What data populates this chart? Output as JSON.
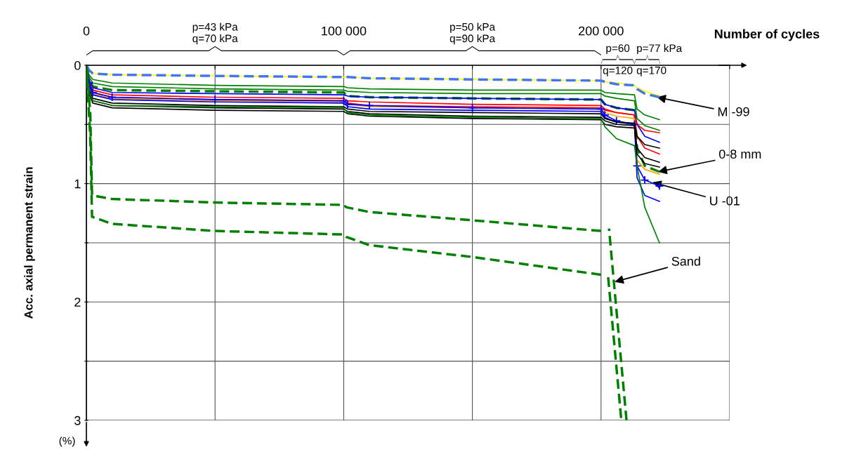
{
  "chart_data": {
    "type": "line",
    "xlabel": "Number of cycles",
    "ylabel": "Acc. axial permanent strain",
    "x": [
      0,
      1000,
      2500,
      10000,
      50000,
      100000,
      101500,
      110000,
      150000,
      200000,
      201500,
      206000,
      213000,
      214000,
      217000,
      222700
    ],
    "xlim": [
      0,
      250000
    ],
    "ylim": [
      3,
      0
    ],
    "xticks": [
      0,
      {
        "value": 50000,
        "label": null
      },
      {
        "value": 100000,
        "label": "100 000"
      },
      {
        "value": 150000,
        "label": null
      },
      {
        "value": 200000,
        "label": "200 000"
      },
      {
        "value": 250000,
        "label": null
      }
    ],
    "yticks": [
      0,
      {
        "value": 0.5,
        "label": null
      },
      1,
      {
        "value": 1.5,
        "label": null
      },
      2,
      {
        "value": 2.5,
        "label": null
      },
      3
    ],
    "grid": true,
    "series": [
      {
        "color": "#ffff00",
        "values": [
          0,
          0.05,
          0.07,
          0.08,
          0.09,
          0.1,
          0.1,
          0.11,
          0.12,
          0.13,
          0.14,
          0.15,
          0.17,
          0.19,
          0.22,
          0.26
        ]
      },
      {
        "color": "#4477ee",
        "line_style": "dashed",
        "values": [
          0,
          0.04,
          0.07,
          0.08,
          0.09,
          0.1,
          0.1,
          0.11,
          0.12,
          0.13,
          0.14,
          0.16,
          0.17,
          0.2,
          0.24,
          0.27
        ]
      },
      {
        "color": "#008000",
        "values": [
          0,
          0.08,
          0.12,
          0.15,
          0.17,
          0.18,
          0.19,
          0.2,
          0.21,
          0.21,
          0.23,
          0.24,
          0.25,
          0.37,
          0.42,
          0.46
        ]
      },
      {
        "color": "#008000",
        "values": [
          0,
          0.1,
          0.15,
          0.18,
          0.2,
          0.21,
          0.22,
          0.23,
          0.24,
          0.24,
          0.26,
          0.28,
          0.3,
          0.45,
          0.51,
          0.55
        ]
      },
      {
        "color": "#008000",
        "line_style": "dashed",
        "values": [
          0,
          0.12,
          0.18,
          0.21,
          0.22,
          0.23,
          0.26,
          0.27,
          0.28,
          0.29,
          0.33,
          0.36,
          0.38,
          0.7,
          0.85,
          0.9
        ]
      },
      {
        "color": "#0000ff",
        "values": [
          0,
          0.12,
          0.19,
          0.23,
          0.24,
          0.25,
          0.26,
          0.27,
          0.28,
          0.29,
          0.33,
          0.36,
          0.38,
          0.5,
          0.6,
          0.65
        ]
      },
      {
        "color": "#ff0000",
        "values": [
          0,
          0.14,
          0.21,
          0.25,
          0.27,
          0.28,
          0.3,
          0.31,
          0.33,
          0.34,
          0.37,
          0.4,
          0.42,
          0.5,
          0.55,
          0.57
        ]
      },
      {
        "color": "#ff0000",
        "values": [
          0,
          0.15,
          0.23,
          0.27,
          0.29,
          0.3,
          0.32,
          0.34,
          0.35,
          0.36,
          0.38,
          0.4,
          0.42,
          0.6,
          0.7,
          0.75
        ]
      },
      {
        "color": "#ffa500",
        "values": [
          0,
          0.16,
          0.24,
          0.28,
          0.3,
          0.31,
          0.33,
          0.35,
          0.36,
          0.37,
          0.4,
          0.43,
          0.45,
          0.8,
          0.88,
          0.92
        ]
      },
      {
        "color": "#0000ff",
        "marker": "cross",
        "values": [
          0,
          0.15,
          0.23,
          0.27,
          0.29,
          0.3,
          0.33,
          0.34,
          0.36,
          0.37,
          0.42,
          0.47,
          0.5,
          0.85,
          0.97,
          1.02
        ]
      },
      {
        "color": "#0000ff",
        "values": [
          0,
          0.17,
          0.25,
          0.29,
          0.31,
          0.32,
          0.35,
          0.37,
          0.38,
          0.39,
          0.44,
          0.48,
          0.5,
          0.95,
          1.1,
          1.15
        ]
      },
      {
        "color": "#000000",
        "values": [
          0,
          0.2,
          0.28,
          0.32,
          0.34,
          0.35,
          0.37,
          0.39,
          0.4,
          0.41,
          0.45,
          0.48,
          0.49,
          0.6,
          0.67,
          0.7
        ]
      },
      {
        "color": "#000000",
        "values": [
          0,
          0.22,
          0.3,
          0.34,
          0.36,
          0.37,
          0.39,
          0.41,
          0.43,
          0.44,
          0.47,
          0.5,
          0.51,
          0.7,
          0.78,
          0.82
        ]
      },
      {
        "color": "#000000",
        "values": [
          0,
          0.24,
          0.32,
          0.36,
          0.38,
          0.39,
          0.41,
          0.43,
          0.45,
          0.46,
          0.5,
          0.52,
          0.53,
          0.75,
          0.83,
          0.86
        ]
      },
      {
        "color": "#008000",
        "values": [
          0,
          0.22,
          0.3,
          0.34,
          0.35,
          0.36,
          0.4,
          0.42,
          0.44,
          0.45,
          0.52,
          0.62,
          0.68,
          0.85,
          1.2,
          1.5
        ]
      },
      {
        "color": "#008000",
        "line_style": "dashed",
        "x": [
          0,
          1500,
          2200,
          10000,
          50000,
          100000,
          101000,
          110000,
          150000,
          200000,
          201500,
          203100,
          209900
        ],
        "values": [
          0,
          0.4,
          1.1,
          1.13,
          1.16,
          1.18,
          1.2,
          1.24,
          1.31,
          1.4,
          null,
          1.38,
          3.0
        ]
      },
      {
        "color": "#008000",
        "line_style": "dashed",
        "x": [
          0,
          1500,
          2200,
          10000,
          50000,
          100000,
          101000,
          110000,
          150000,
          200000,
          201000,
          202600,
          207800
        ],
        "values": [
          0,
          0.6,
          1.28,
          1.34,
          1.4,
          1.43,
          1.45,
          1.52,
          1.62,
          1.77,
          null,
          1.75,
          2.98
        ]
      }
    ],
    "annotations": [
      "p=43 kPa\nq=70 kPa",
      "p=50 kPa\nq=90 kPa",
      "p=60\nq=120",
      "p=77 kPa\nq=170",
      {
        "text": "M -99",
        "x": 221700,
        "y": 0.27
      },
      {
        "text": "0-8 mm",
        "x": 222200,
        "y": 0.9
      },
      {
        "text": "U -01",
        "x": 220000,
        "y": 0.99
      },
      {
        "text": "Sand",
        "x": 205300,
        "y": 1.83
      },
      "(%)"
    ]
  }
}
